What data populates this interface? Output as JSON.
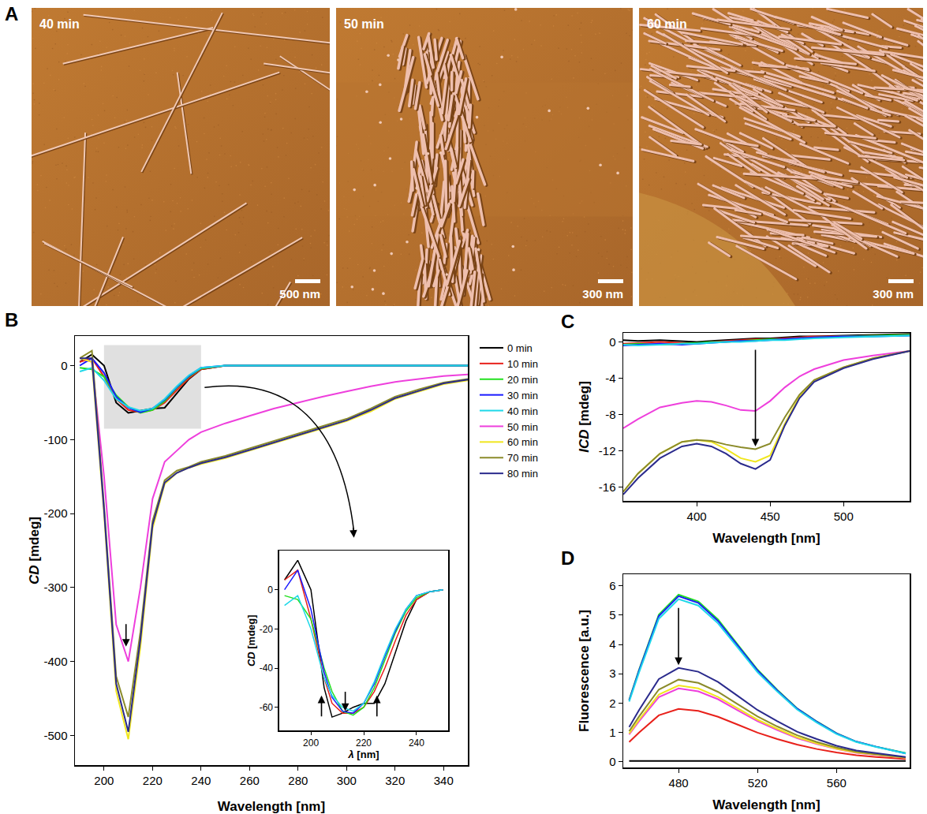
{
  "panel_a": {
    "panel": "A",
    "images": [
      {
        "label": "40 min",
        "scale_bar": "500 nm"
      },
      {
        "label": "50 min",
        "scale_bar": "300 nm"
      },
      {
        "label": "60 min",
        "scale_bar": "300 nm"
      }
    ]
  },
  "chart_data": [
    {
      "type": "line",
      "panel": "B",
      "x_label": "Wavelength [nm]",
      "y_label": "CD [mdeg]",
      "x": [
        190,
        195,
        200,
        205,
        210,
        215,
        220,
        225,
        230,
        235,
        240,
        250,
        260,
        270,
        280,
        290,
        300,
        310,
        320,
        330,
        340,
        350
      ],
      "series": [
        {
          "name": "0 min",
          "color": "#000000",
          "values": [
            5,
            15,
            0,
            -50,
            -64,
            -61,
            -58,
            -57,
            -38,
            -18,
            -5,
            0,
            0,
            0,
            0,
            0,
            0,
            0,
            0,
            0,
            0,
            0
          ]
        },
        {
          "name": "10 min",
          "color": "#e8201a",
          "values": [
            5,
            10,
            -15,
            -45,
            -60,
            -63,
            -60,
            -50,
            -33,
            -17,
            -5,
            0,
            0,
            0,
            0,
            0,
            0,
            0,
            0,
            0,
            0,
            0
          ]
        },
        {
          "name": "20 min",
          "color": "#22e01e",
          "values": [
            -3,
            -5,
            -15,
            -40,
            -56,
            -64,
            -60,
            -48,
            -30,
            -15,
            -4,
            0,
            0,
            0,
            0,
            0,
            0,
            0,
            0,
            0,
            0,
            0
          ]
        },
        {
          "name": "30 min",
          "color": "#1a1aff",
          "values": [
            0,
            10,
            -10,
            -42,
            -57,
            -63,
            -58,
            -46,
            -29,
            -14,
            -3,
            0,
            0,
            0,
            0,
            0,
            0,
            0,
            0,
            0,
            0,
            0
          ]
        },
        {
          "name": "40 min",
          "color": "#1ed8e8",
          "values": [
            -8,
            -3,
            -20,
            -45,
            -56,
            -61,
            -58,
            -45,
            -28,
            -13,
            -3,
            0,
            0,
            0,
            0,
            0,
            0,
            0,
            0,
            0,
            0,
            0
          ]
        },
        {
          "name": "50 min",
          "color": "#ee3fdc",
          "values": [
            10,
            5,
            -150,
            -350,
            -400,
            -300,
            -180,
            -130,
            -115,
            -100,
            -90,
            -78,
            -68,
            -58,
            -50,
            -42,
            -35,
            -28,
            -22,
            -18,
            -14,
            -12
          ]
        },
        {
          "name": "60 min",
          "color": "#f0e61e",
          "values": [
            10,
            5,
            -200,
            -440,
            -505,
            -380,
            -220,
            -160,
            -145,
            -138,
            -133,
            -125,
            -115,
            -105,
            -95,
            -85,
            -75,
            -62,
            -45,
            -35,
            -25,
            -20
          ]
        },
        {
          "name": "70 min",
          "color": "#8b8b2a",
          "values": [
            10,
            20,
            -190,
            -420,
            -475,
            -360,
            -210,
            -155,
            -142,
            -137,
            -130,
            -122,
            -112,
            -102,
            -92,
            -82,
            -72,
            -58,
            -42,
            -32,
            -23,
            -18
          ]
        },
        {
          "name": "80 min",
          "color": "#2a2a8c",
          "values": [
            10,
            10,
            -195,
            -430,
            -495,
            -370,
            -215,
            -158,
            -145,
            -138,
            -132,
            -124,
            -114,
            -104,
            -94,
            -84,
            -74,
            -60,
            -44,
            -34,
            -24,
            -19
          ]
        }
      ],
      "xlim": [
        188,
        350
      ],
      "ylim": [
        -540,
        40
      ],
      "xticks": [
        200,
        220,
        240,
        260,
        280,
        300,
        320,
        340
      ],
      "yticks": [
        0,
        -100,
        -200,
        -300,
        -400,
        -500
      ],
      "legend": "right",
      "grid": false
    },
    {
      "type": "line",
      "x_label": "λ [nm]",
      "y_label": "CD [mdeg]",
      "x": [
        190,
        195,
        200,
        205,
        208,
        212,
        216,
        220,
        224,
        228,
        232,
        236,
        240,
        245,
        250
      ],
      "series": [
        {
          "name": "0 min",
          "color": "#000000",
          "values": [
            5,
            15,
            0,
            -50,
            -65,
            -63,
            -60,
            -58,
            -58,
            -48,
            -32,
            -16,
            -5,
            -1,
            0
          ]
        },
        {
          "name": "10 min",
          "color": "#e8201a",
          "values": [
            5,
            10,
            -15,
            -45,
            -58,
            -63,
            -63,
            -60,
            -52,
            -40,
            -26,
            -13,
            -5,
            -1,
            0
          ]
        },
        {
          "name": "20 min",
          "color": "#22e01e",
          "values": [
            -3,
            -5,
            -15,
            -40,
            -52,
            -62,
            -64,
            -60,
            -50,
            -36,
            -22,
            -11,
            -4,
            -1,
            0
          ]
        },
        {
          "name": "30 min",
          "color": "#1a1aff",
          "values": [
            0,
            10,
            -10,
            -42,
            -55,
            -62,
            -63,
            -58,
            -48,
            -34,
            -21,
            -10,
            -3,
            -1,
            0
          ]
        },
        {
          "name": "40 min",
          "color": "#1ed8e8",
          "values": [
            -8,
            -3,
            -20,
            -45,
            -54,
            -60,
            -62,
            -58,
            -47,
            -33,
            -20,
            -10,
            -3,
            -1,
            0
          ]
        }
      ],
      "xlim": [
        188,
        252
      ],
      "ylim": [
        -72,
        20
      ],
      "xticks": [
        200,
        220,
        240
      ],
      "yticks": [
        0,
        -20,
        -40,
        -60
      ],
      "grid": false
    },
    {
      "type": "line",
      "panel": "C",
      "x_label": "Wavelength [nm]",
      "y_label": "ICD [mdeg]",
      "x": [
        350,
        360,
        375,
        390,
        400,
        410,
        420,
        430,
        440,
        450,
        460,
        470,
        480,
        500,
        520,
        545
      ],
      "series": [
        {
          "name": "0 min",
          "color": "#000000",
          "values": [
            0.2,
            0.1,
            0.2,
            0.1,
            0.0,
            0.1,
            0.2,
            0.3,
            0.4,
            0.4,
            0.5,
            0.6,
            0.6,
            0.7,
            0.8,
            0.9
          ]
        },
        {
          "name": "10 min",
          "color": "#e8201a",
          "values": [
            -0.2,
            -0.1,
            0,
            -0.1,
            -0.2,
            0,
            0.1,
            0.2,
            0.3,
            0.3,
            0.4,
            0.5,
            0.6,
            0.6,
            0.7,
            0.8
          ]
        },
        {
          "name": "20 min",
          "color": "#22e01e",
          "values": [
            -0.3,
            -0.2,
            -0.3,
            -0.2,
            -0.1,
            0,
            0,
            0.1,
            0.2,
            0.3,
            0.3,
            0.4,
            0.5,
            0.6,
            0.7,
            0.8
          ]
        },
        {
          "name": "30 min",
          "color": "#1a1aff",
          "values": [
            -0.4,
            -0.3,
            -0.2,
            -0.3,
            -0.2,
            -0.1,
            0,
            0.1,
            0.1,
            0.2,
            0.3,
            0.4,
            0.5,
            0.6,
            0.6,
            0.7
          ]
        },
        {
          "name": "40 min",
          "color": "#1ed8e8",
          "values": [
            -0.3,
            -0.4,
            -0.3,
            -0.2,
            -0.2,
            -0.1,
            0,
            0,
            0.1,
            0.2,
            0.2,
            0.3,
            0.4,
            0.5,
            0.6,
            0.7
          ]
        },
        {
          "name": "50 min",
          "color": "#ee3fdc",
          "values": [
            -9.5,
            -8.5,
            -7.2,
            -6.7,
            -6.5,
            -6.6,
            -7,
            -7.5,
            -7.6,
            -6.5,
            -5,
            -3.8,
            -3,
            -2,
            -1.5,
            -1
          ]
        },
        {
          "name": "60 min",
          "color": "#f0e61e",
          "values": [
            -16.5,
            -14.5,
            -12.3,
            -11,
            -10.8,
            -11,
            -11.8,
            -12.8,
            -13.2,
            -12.5,
            -9,
            -6,
            -4.2,
            -2.8,
            -1.8,
            -1
          ]
        },
        {
          "name": "70 min",
          "color": "#8b8b2a",
          "values": [
            -16.5,
            -14.5,
            -12.3,
            -11,
            -10.8,
            -10.9,
            -11.3,
            -11.6,
            -11.8,
            -11.2,
            -8.3,
            -5.8,
            -4.2,
            -2.8,
            -1.8,
            -1
          ]
        },
        {
          "name": "80 min",
          "color": "#2a2a8c",
          "values": [
            -16.8,
            -15,
            -12.8,
            -11.5,
            -11.2,
            -11.5,
            -12.3,
            -13.4,
            -14,
            -13,
            -9.2,
            -6.2,
            -4.4,
            -2.9,
            -1.9,
            -1
          ]
        }
      ],
      "xlim": [
        350,
        545
      ],
      "ylim": [
        -17.5,
        1
      ],
      "xticks": [
        400,
        450,
        500
      ],
      "yticks": [
        0,
        -4,
        -8,
        -12,
        -16
      ],
      "grid": false
    },
    {
      "type": "line",
      "panel": "D",
      "x_label": "Wavelength [nm]",
      "y_label": "Fluorescence [a.u.]",
      "x": [
        455,
        460,
        470,
        480,
        490,
        500,
        510,
        520,
        530,
        540,
        550,
        560,
        570,
        580,
        595
      ],
      "series": [
        {
          "name": "0 min",
          "color": "#000000",
          "values": [
            0.02,
            0.02,
            0.02,
            0.02,
            0.02,
            0.02,
            0.02,
            0.02,
            0.02,
            0.02,
            0.02,
            0.02,
            0.02,
            0.02,
            0.02
          ]
        },
        {
          "name": "10 min",
          "color": "#e8201a",
          "values": [
            0.67,
            0.99,
            1.58,
            1.8,
            1.73,
            1.53,
            1.26,
            0.99,
            0.77,
            0.58,
            0.43,
            0.31,
            0.22,
            0.16,
            0.09
          ]
        },
        {
          "name": "20 min",
          "color": "#22e01e",
          "values": [
            2.11,
            3.14,
            5.02,
            5.7,
            5.47,
            4.85,
            3.99,
            3.14,
            2.45,
            1.82,
            1.37,
            0.97,
            0.68,
            0.51,
            0.29
          ]
        },
        {
          "name": "30 min",
          "color": "#1a1aff",
          "values": [
            2.09,
            3.11,
            4.97,
            5.65,
            5.42,
            4.8,
            3.96,
            3.11,
            2.43,
            1.81,
            1.36,
            0.96,
            0.68,
            0.51,
            0.28
          ]
        },
        {
          "name": "40 min",
          "color": "#1ed8e8",
          "values": [
            2.05,
            3.05,
            4.88,
            5.55,
            5.33,
            4.72,
            3.89,
            3.05,
            2.39,
            1.78,
            1.33,
            0.94,
            0.67,
            0.5,
            0.28
          ]
        },
        {
          "name": "50 min",
          "color": "#ee3fdc",
          "values": [
            0.93,
            1.38,
            2.2,
            2.5,
            2.4,
            2.13,
            1.75,
            1.38,
            1.08,
            0.8,
            0.6,
            0.43,
            0.3,
            0.23,
            0.13
          ]
        },
        {
          "name": "60 min",
          "color": "#f0e61e",
          "values": [
            0.96,
            1.43,
            2.29,
            2.6,
            2.5,
            2.21,
            1.82,
            1.43,
            1.12,
            0.83,
            0.62,
            0.44,
            0.31,
            0.23,
            0.13
          ]
        },
        {
          "name": "70 min",
          "color": "#8b8b2a",
          "values": [
            1.04,
            1.54,
            2.46,
            2.8,
            2.69,
            2.38,
            1.96,
            1.54,
            1.2,
            0.9,
            0.67,
            0.48,
            0.34,
            0.25,
            0.14
          ]
        },
        {
          "name": "80 min",
          "color": "#2a2a8c",
          "values": [
            1.18,
            1.76,
            2.82,
            3.2,
            3.07,
            2.72,
            2.24,
            1.76,
            1.38,
            1.02,
            0.77,
            0.54,
            0.38,
            0.29,
            0.16
          ]
        }
      ],
      "xlim": [
        452,
        597
      ],
      "ylim": [
        -0.2,
        6.4
      ],
      "xticks": [
        480,
        520,
        560
      ],
      "yticks": [
        0,
        1,
        2,
        3,
        4,
        5,
        6
      ],
      "grid": false
    }
  ]
}
